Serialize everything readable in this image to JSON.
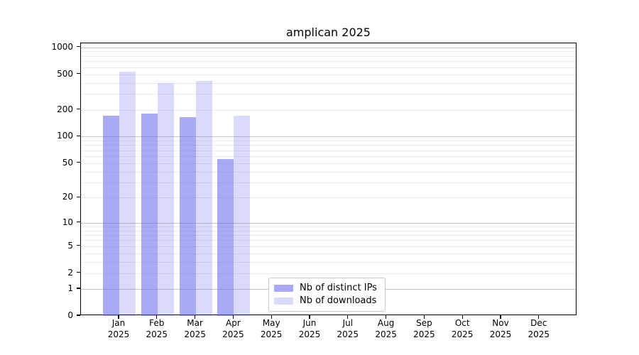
{
  "title": "amplican 2025",
  "chart_data": {
    "type": "bar",
    "title": "amplican 2025",
    "x_categories": [
      "Jan",
      "Feb",
      "Mar",
      "Apr",
      "May",
      "Jun",
      "Jul",
      "Aug",
      "Sep",
      "Oct",
      "Nov",
      "Dec"
    ],
    "x_year": "2025",
    "series": [
      {
        "name": "Nb of distinct IPs",
        "color": "rgba(102,102,238,0.56)",
        "values": [
          170,
          180,
          165,
          56,
          null,
          null,
          null,
          null,
          null,
          null,
          null,
          null
        ]
      },
      {
        "name": "Nb of downloads",
        "color": "rgba(102,102,238,0.24)",
        "values": [
          530,
          400,
          420,
          170,
          null,
          null,
          null,
          null,
          null,
          null,
          null,
          null
        ]
      }
    ],
    "y_scale": "log1p",
    "y_ticks": [
      1000,
      500,
      200,
      100,
      50,
      20,
      10,
      5,
      2,
      1,
      0
    ],
    "y_major_gridlines": [
      1,
      10,
      100,
      1000
    ],
    "y_minor_gridlines": [
      2,
      3,
      4,
      5,
      6,
      7,
      8,
      9,
      20,
      30,
      40,
      50,
      60,
      70,
      80,
      90,
      200,
      300,
      400,
      500,
      600,
      700,
      800,
      900
    ],
    "ylim": [
      0,
      1000
    ],
    "grid": "on",
    "legend_position": "lower-center-left",
    "colors": {
      "bar_base": "#6666ee",
      "grid_minor": "#ececec",
      "grid_major": "#c6c6c6",
      "axis": "#000000",
      "background": "#ffffff",
      "legend_border": "#c9c9c9"
    }
  }
}
